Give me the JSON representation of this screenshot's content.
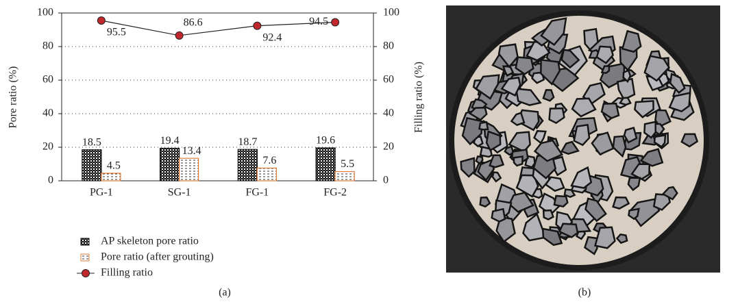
{
  "chart_data": {
    "type": "bar-line",
    "categories": [
      "PG-1",
      "SG-1",
      "FG-1",
      "FG-2"
    ],
    "series": [
      {
        "name": "AP skeleton pore ratio",
        "color": "#111111",
        "values": [
          18.5,
          19.4,
          18.7,
          19.6
        ]
      },
      {
        "name": "Pore ratio (after grouting)",
        "color": "#e07b39",
        "values": [
          4.5,
          13.4,
          7.6,
          5.5
        ]
      },
      {
        "name": "Filling ratio",
        "color": "#c0282d",
        "axis": "y2",
        "values": [
          95.5,
          86.6,
          92.4,
          94.5
        ]
      }
    ],
    "ylabel": "Pore ratio (%)",
    "y2label": "Filling ratio (%)",
    "ylim": [
      0,
      100
    ],
    "yticks": [
      0,
      20,
      40,
      60,
      80,
      100
    ],
    "y2lim": [
      0,
      100
    ],
    "y2ticks": [
      0,
      20,
      40,
      60,
      80,
      100
    ],
    "grid": true,
    "legend": "bottom-left"
  },
  "figure": {
    "captions": [
      "(a)",
      "(b)"
    ]
  }
}
